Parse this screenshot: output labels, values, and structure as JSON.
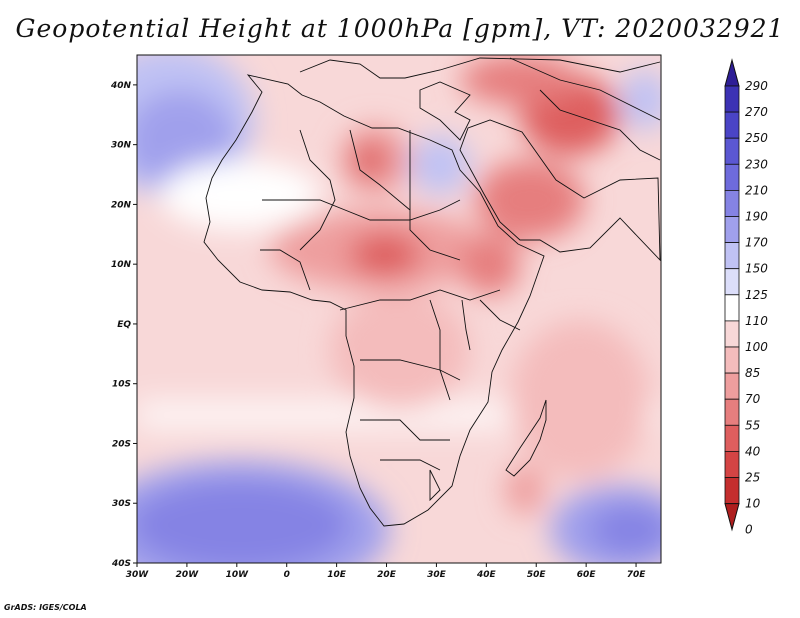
{
  "title": "Geopotential Height at 1000hPa [gpm], VT: 2020032921",
  "credit": "GrADS: IGES/COLA",
  "map": {
    "variable": "Geopotential Height at 1000hPa",
    "units": "gpm",
    "valid_time": "2020032921",
    "lon_range": [
      -30,
      75
    ],
    "lat_range": [
      -40,
      45
    ],
    "lon_ticks": [
      "30W",
      "20W",
      "10W",
      "0",
      "10E",
      "20E",
      "30E",
      "40E",
      "50E",
      "60E",
      "70E"
    ],
    "lat_ticks": [
      "40N",
      "30N",
      "20N",
      "10N",
      "EQ",
      "10S",
      "20S",
      "30S",
      "40S"
    ]
  },
  "colorbar": {
    "levels": [
      "290",
      "270",
      "250",
      "230",
      "210",
      "190",
      "170",
      "150",
      "125",
      "110",
      "100",
      "85",
      "70",
      "55",
      "40",
      "25",
      "10",
      "0"
    ],
    "colors": [
      "#2e1e96",
      "#3c32b4",
      "#4a44c6",
      "#5b57d2",
      "#6e6bdc",
      "#8583e4",
      "#a0a0ec",
      "#c0c2f4",
      "#dcdefa",
      "#ffffff",
      "#f8d8d8",
      "#f4bcbc",
      "#ee9e9e",
      "#e67e7e",
      "#de5e5e",
      "#d44444",
      "#c42e2e",
      "#ae1e1e"
    ]
  },
  "colors": {
    "land_outline": "#111111",
    "background": "#ffffff"
  }
}
